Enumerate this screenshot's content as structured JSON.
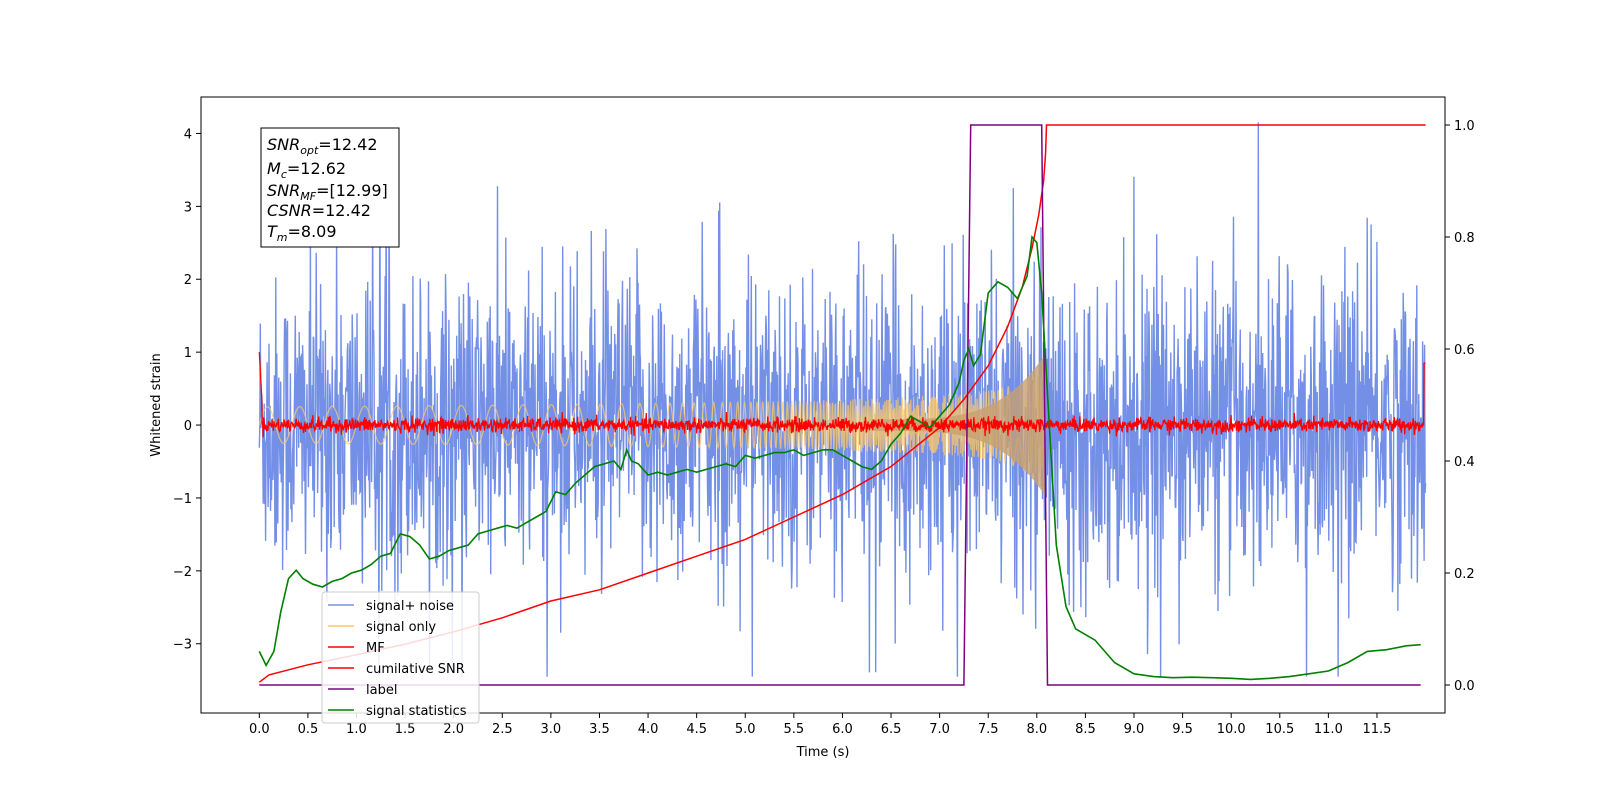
{
  "chart_data": {
    "type": "line",
    "xlabel": "Time (s)",
    "ylabel": "Whitened strain",
    "xlim": [
      -0.6,
      12.2
    ],
    "ylim": [
      -3.95,
      4.5
    ],
    "y2lim": [
      -0.05,
      1.05
    ],
    "x_ticks": [
      "0.0",
      "0.5",
      "1.0",
      "1.5",
      "2.0",
      "2.5",
      "3.0",
      "3.5",
      "4.0",
      "4.5",
      "5.0",
      "5.5",
      "6.0",
      "6.5",
      "7.0",
      "7.5",
      "8.0",
      "8.5",
      "9.0",
      "9.5",
      "10.0",
      "10.5",
      "11.0",
      "11.5"
    ],
    "y_ticks": [
      "−3",
      "−2",
      "−1",
      "0",
      "1",
      "2",
      "3",
      "4"
    ],
    "y2_ticks": [
      "0.0",
      "0.2",
      "0.4",
      "0.6",
      "0.8",
      "1.0"
    ],
    "grid": false,
    "legend_placement": "lower-left",
    "stats": {
      "snr_opt": {
        "label": "SNR",
        "sub": "opt",
        "value": "=12.42"
      },
      "mc": {
        "label": "M",
        "sub": "c",
        "value": "=12.62"
      },
      "snr_mf": {
        "label": "SNR",
        "sub": "MF",
        "value": "=[12.99]"
      },
      "csnr": {
        "label": "CSNR",
        "sub": "",
        "value": "=12.42"
      },
      "tm": {
        "label": "T",
        "sub": "m",
        "value": "=8.09"
      }
    },
    "series": [
      {
        "name": "signal+ noise",
        "color": "#7490e6",
        "axis": "left",
        "kind": "noise",
        "amplitude": 1.0,
        "x_range": [
          0.0,
          12.0
        ]
      },
      {
        "name": "signal only",
        "color": "#ffc966",
        "axis": "left",
        "kind": "chirp",
        "t_merge": 8.09,
        "peak_amplitude": 1.0
      },
      {
        "name": "MF",
        "color": "#ff0000",
        "axis": "left",
        "kind": "mf",
        "amplitude": 0.1
      },
      {
        "name": "cumilative SNR",
        "color": "#ff0000",
        "axis": "right",
        "x": [
          0.0,
          0.1,
          0.5,
          1.0,
          1.5,
          2.0,
          2.5,
          3.0,
          3.5,
          4.0,
          4.5,
          5.0,
          5.5,
          6.0,
          6.5,
          7.0,
          7.25,
          7.5,
          7.7,
          7.85,
          7.95,
          8.02,
          8.07,
          8.09,
          8.1,
          12.0
        ],
        "values": [
          0.005,
          0.018,
          0.036,
          0.054,
          0.073,
          0.095,
          0.12,
          0.15,
          0.17,
          0.2,
          0.23,
          0.26,
          0.3,
          0.34,
          0.39,
          0.46,
          0.51,
          0.57,
          0.64,
          0.71,
          0.78,
          0.84,
          0.9,
          0.95,
          1.0,
          1.0
        ]
      },
      {
        "name": "label",
        "color": "#800080",
        "axis": "right",
        "x": [
          0.0,
          7.25,
          7.32,
          8.05,
          8.11,
          11.95
        ],
        "values": [
          0.0,
          0.0,
          1.0,
          1.0,
          0.0,
          0.0
        ]
      },
      {
        "name": "signal statistics",
        "color": "#008000",
        "axis": "right",
        "x": [
          0.0,
          0.07,
          0.15,
          0.22,
          0.3,
          0.38,
          0.45,
          0.55,
          0.65,
          0.75,
          0.85,
          0.95,
          1.05,
          1.15,
          1.25,
          1.35,
          1.45,
          1.55,
          1.65,
          1.75,
          1.85,
          1.95,
          2.05,
          2.15,
          2.25,
          2.35,
          2.45,
          2.55,
          2.65,
          2.75,
          2.85,
          2.95,
          3.05,
          3.15,
          3.25,
          3.35,
          3.45,
          3.55,
          3.65,
          3.72,
          3.78,
          3.83,
          3.9,
          4.0,
          4.1,
          4.2,
          4.3,
          4.4,
          4.5,
          4.6,
          4.7,
          4.8,
          4.9,
          5.0,
          5.1,
          5.2,
          5.3,
          5.4,
          5.5,
          5.6,
          5.7,
          5.8,
          5.9,
          6.0,
          6.1,
          6.2,
          6.3,
          6.4,
          6.5,
          6.6,
          6.7,
          6.8,
          6.9,
          7.0,
          7.1,
          7.2,
          7.25,
          7.3,
          7.35,
          7.42,
          7.5,
          7.6,
          7.7,
          7.8,
          7.9,
          7.95,
          8.0,
          8.05,
          8.1,
          8.15,
          8.2,
          8.3,
          8.4,
          8.5,
          8.6,
          8.7,
          8.8,
          8.9,
          9.0,
          9.2,
          9.4,
          9.6,
          9.8,
          10.0,
          10.2,
          10.4,
          10.6,
          10.8,
          11.0,
          11.2,
          11.4,
          11.6,
          11.8,
          11.95
        ],
        "values": [
          0.06,
          0.035,
          0.06,
          0.13,
          0.19,
          0.205,
          0.19,
          0.18,
          0.175,
          0.185,
          0.19,
          0.2,
          0.205,
          0.215,
          0.23,
          0.235,
          0.27,
          0.265,
          0.25,
          0.225,
          0.23,
          0.24,
          0.245,
          0.25,
          0.27,
          0.275,
          0.28,
          0.285,
          0.28,
          0.29,
          0.3,
          0.31,
          0.345,
          0.34,
          0.36,
          0.375,
          0.39,
          0.395,
          0.4,
          0.385,
          0.42,
          0.4,
          0.395,
          0.375,
          0.38,
          0.375,
          0.38,
          0.385,
          0.38,
          0.385,
          0.39,
          0.395,
          0.39,
          0.41,
          0.405,
          0.41,
          0.415,
          0.415,
          0.42,
          0.41,
          0.415,
          0.42,
          0.42,
          0.41,
          0.4,
          0.39,
          0.385,
          0.4,
          0.43,
          0.45,
          0.48,
          0.47,
          0.46,
          0.48,
          0.5,
          0.54,
          0.58,
          0.6,
          0.57,
          0.59,
          0.7,
          0.72,
          0.71,
          0.69,
          0.73,
          0.8,
          0.79,
          0.7,
          0.55,
          0.4,
          0.25,
          0.14,
          0.1,
          0.09,
          0.08,
          0.06,
          0.04,
          0.03,
          0.02,
          0.015,
          0.013,
          0.014,
          0.013,
          0.012,
          0.01,
          0.012,
          0.015,
          0.02,
          0.025,
          0.04,
          0.06,
          0.063,
          0.07,
          0.072
        ]
      }
    ]
  }
}
